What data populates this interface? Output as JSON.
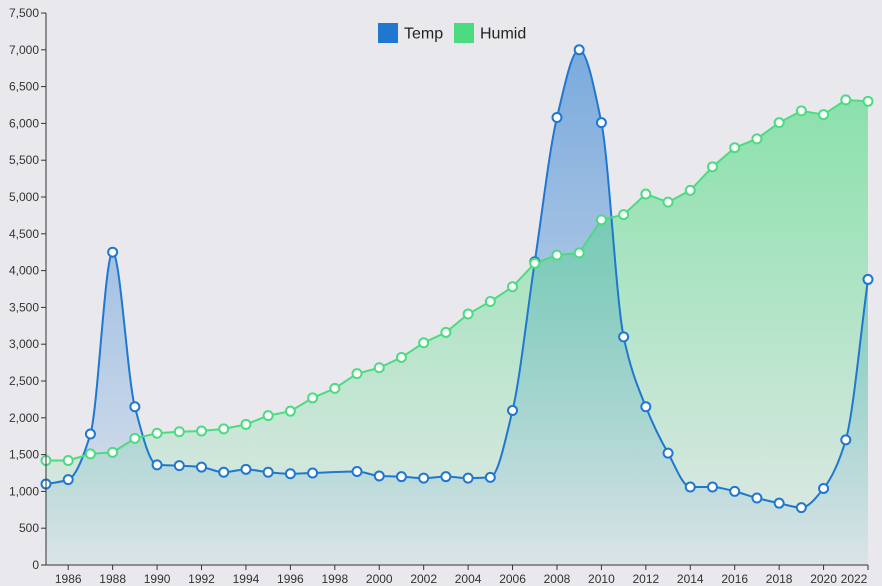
{
  "chart_data": {
    "type": "area",
    "title": "",
    "xlabel": "",
    "ylabel": "",
    "xlim": [
      1985,
      2022
    ],
    "ylim": [
      0,
      7500
    ],
    "x_ticks": [
      "1986",
      "1988",
      "1990",
      "1992",
      "1994",
      "1996",
      "1998",
      "2000",
      "2002",
      "2004",
      "2006",
      "2008",
      "2010",
      "2012",
      "2014",
      "2016",
      "2018",
      "2020",
      "2022"
    ],
    "y_ticks": [
      "0",
      "500",
      "1,000",
      "1,500",
      "2,000",
      "2,500",
      "3,000",
      "3,500",
      "4,000",
      "4,500",
      "5,000",
      "5,500",
      "6,000",
      "6,500",
      "7,000",
      "7,500"
    ],
    "grid": false,
    "legend_position": "top-center",
    "series": [
      {
        "name": "Temp",
        "color": "#1f77d0",
        "curve": "smooth",
        "points": [
          [
            1985,
            1100
          ],
          [
            1986,
            1160
          ],
          [
            1987,
            1780
          ],
          [
            1988,
            4250
          ],
          [
            1989,
            2150
          ],
          [
            1990,
            1360
          ],
          [
            1991,
            1350
          ],
          [
            1992,
            1330
          ],
          [
            1993,
            1260
          ],
          [
            1994,
            1300
          ],
          [
            1995,
            1260
          ],
          [
            1996,
            1240
          ],
          [
            1997,
            1250
          ],
          [
            1999,
            1270
          ],
          [
            2000,
            1210
          ],
          [
            2001,
            1200
          ],
          [
            2002,
            1180
          ],
          [
            2003,
            1200
          ],
          [
            2004,
            1180
          ],
          [
            2005,
            1190
          ],
          [
            2006,
            2100
          ],
          [
            2007,
            4120
          ],
          [
            2008,
            6080
          ],
          [
            2009,
            7000
          ],
          [
            2010,
            6010
          ],
          [
            2011,
            3100
          ],
          [
            2012,
            2150
          ],
          [
            2013,
            1520
          ],
          [
            2014,
            1060
          ],
          [
            2015,
            1060
          ],
          [
            2016,
            1000
          ],
          [
            2017,
            910
          ],
          [
            2018,
            840
          ],
          [
            2019,
            780
          ],
          [
            2020,
            1040
          ],
          [
            2021,
            1700
          ],
          [
            2022,
            3880
          ]
        ]
      },
      {
        "name": "Humid",
        "color": "#4cdb80",
        "curve": "linear",
        "points": [
          [
            1985,
            1420
          ],
          [
            1986,
            1420
          ],
          [
            1987,
            1510
          ],
          [
            1988,
            1530
          ],
          [
            1989,
            1720
          ],
          [
            1990,
            1790
          ],
          [
            1991,
            1810
          ],
          [
            1992,
            1820
          ],
          [
            1993,
            1850
          ],
          [
            1994,
            1910
          ],
          [
            1995,
            2030
          ],
          [
            1996,
            2090
          ],
          [
            1997,
            2270
          ],
          [
            1998,
            2400
          ],
          [
            1999,
            2600
          ],
          [
            2000,
            2680
          ],
          [
            2001,
            2820
          ],
          [
            2002,
            3020
          ],
          [
            2003,
            3160
          ],
          [
            2004,
            3410
          ],
          [
            2005,
            3580
          ],
          [
            2006,
            3780
          ],
          [
            2007,
            4100
          ],
          [
            2008,
            4210
          ],
          [
            2009,
            4240
          ],
          [
            2010,
            4690
          ],
          [
            2011,
            4760
          ],
          [
            2012,
            5040
          ],
          [
            2013,
            4930
          ],
          [
            2014,
            5090
          ],
          [
            2015,
            5410
          ],
          [
            2016,
            5670
          ],
          [
            2017,
            5790
          ],
          [
            2018,
            6010
          ],
          [
            2019,
            6170
          ],
          [
            2020,
            6120
          ],
          [
            2021,
            6320
          ],
          [
            2022,
            6300
          ]
        ]
      }
    ]
  }
}
